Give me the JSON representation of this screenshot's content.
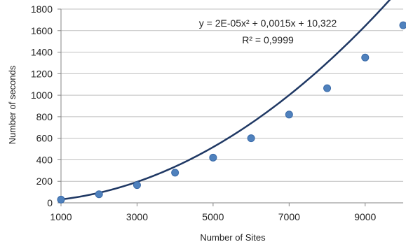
{
  "chart_data": {
    "type": "scatter",
    "title": "",
    "xlabel": "Number of Sites",
    "ylabel": "Number of seconds",
    "xlim": [
      1000,
      10000
    ],
    "ylim": [
      0,
      1800
    ],
    "x_ticks": [
      "1000",
      "3000",
      "5000",
      "7000",
      "9000"
    ],
    "x_tick_values": [
      1000,
      3000,
      5000,
      7000,
      9000
    ],
    "y_ticks": [
      "0",
      "200",
      "400",
      "600",
      "800",
      "1000",
      "1200",
      "1400",
      "1600",
      "1800"
    ],
    "y_tick_values": [
      0,
      200,
      400,
      600,
      800,
      1000,
      1200,
      1400,
      1600,
      1800
    ],
    "grid": "horizontal",
    "legend": "none",
    "series": [
      {
        "x": [
          1000,
          2000,
          3000,
          4000,
          5000,
          6000,
          7000,
          8000,
          9000,
          10000
        ],
        "y": [
          30,
          80,
          165,
          280,
          420,
          600,
          820,
          1065,
          1350,
          1650
        ],
        "marker_color": "#4f81bd"
      }
    ],
    "trendline": {
      "type": "polynomial",
      "coefficients": {
        "a": 2e-05,
        "b": 0.0015,
        "c": 10.322
      },
      "color": "#1f3864"
    },
    "annotation": {
      "equation": "y = 2E-05x² + 0,0015x + 10,322",
      "r_squared": "R² = 0,9999"
    }
  }
}
